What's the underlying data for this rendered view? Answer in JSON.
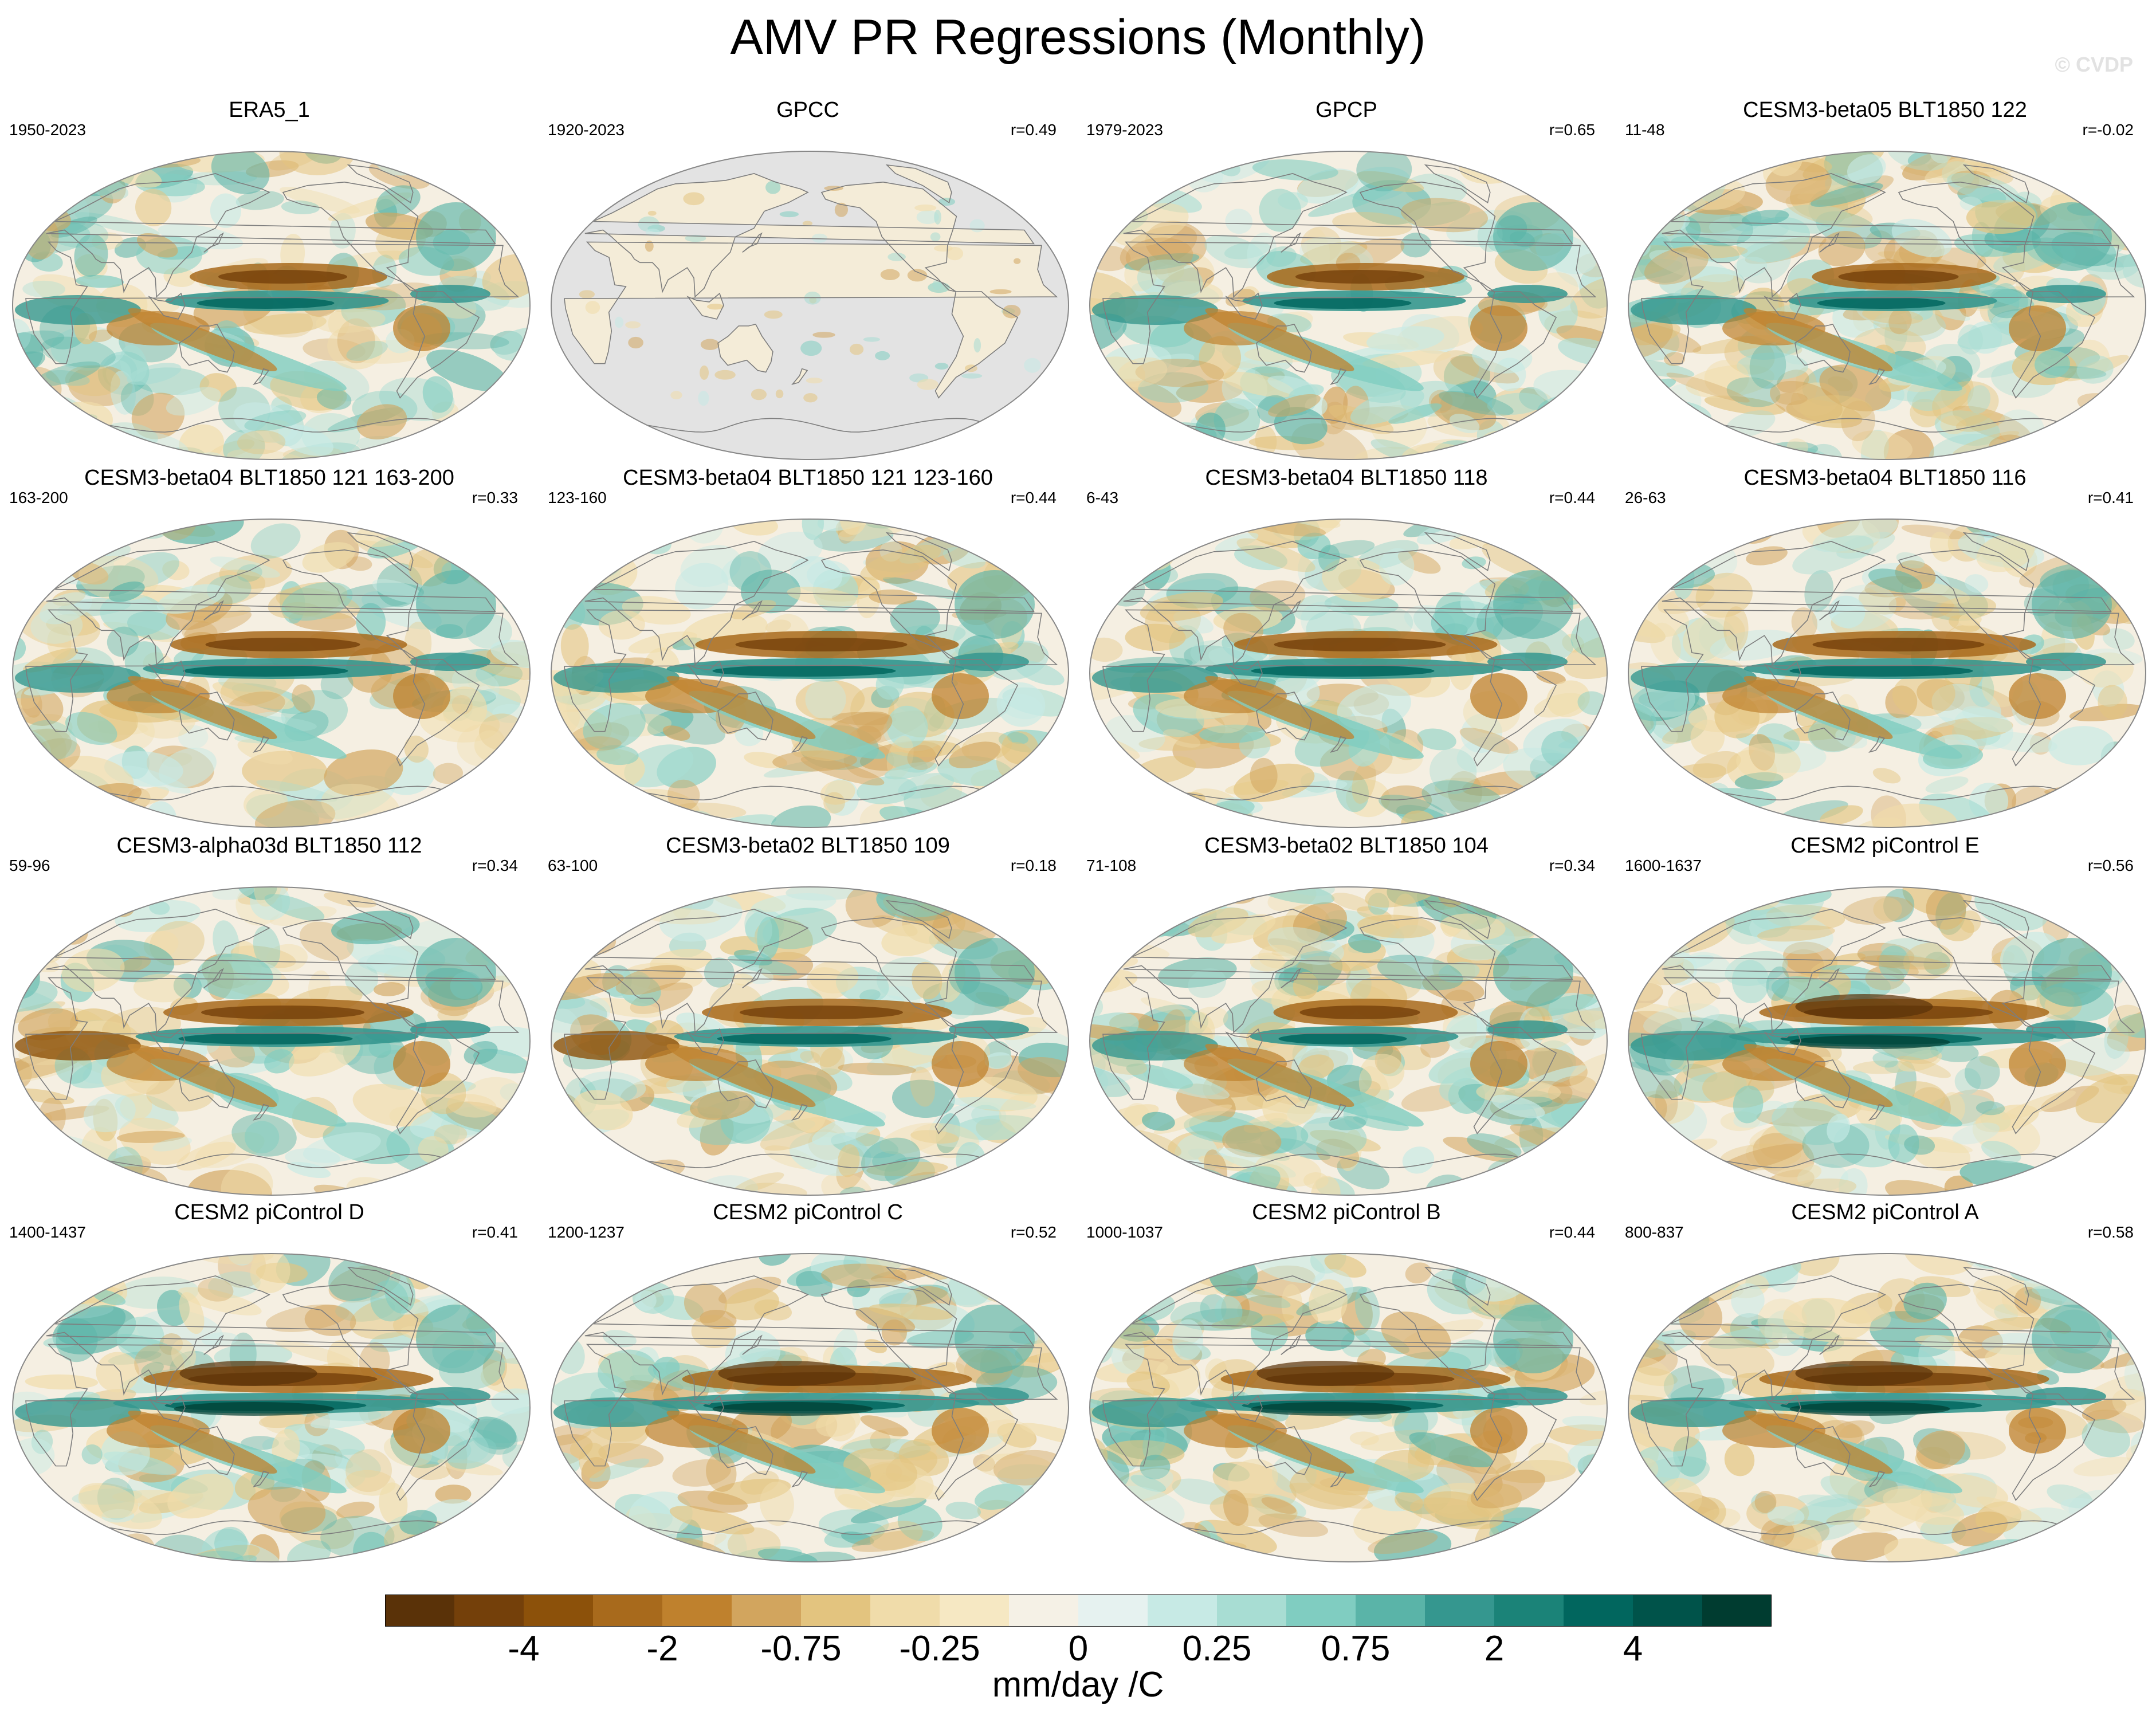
{
  "title": "AMV PR Regressions (Monthly)",
  "watermark": "© CVDP",
  "panels": [
    {
      "name": "ERA5_1",
      "period": "1950-2023",
      "corr": "",
      "pattern": "obs"
    },
    {
      "name": "GPCC",
      "period": "1920-2023",
      "corr": "r=0.49",
      "pattern": "land"
    },
    {
      "name": "GPCP",
      "period": "1979-2023",
      "corr": "r=0.65",
      "pattern": "obs"
    },
    {
      "name": "CESM3-beta05 BLT1850 122",
      "period": "11-48",
      "corr": "r=-0.02",
      "pattern": "noisy"
    },
    {
      "name": "CESM3-beta04 BLT1850 121 163-200",
      "period": "163-200",
      "corr": "r=0.33",
      "pattern": "split"
    },
    {
      "name": "CESM3-beta04 BLT1850 121 123-160",
      "period": "123-160",
      "corr": "r=0.44",
      "pattern": "enso"
    },
    {
      "name": "CESM3-beta04 BLT1850 118",
      "period": "6-43",
      "corr": "r=0.44",
      "pattern": "enso"
    },
    {
      "name": "CESM3-beta04 BLT1850 116",
      "period": "26-63",
      "corr": "r=0.41",
      "pattern": "enso"
    },
    {
      "name": "CESM3-alpha03d BLT1850 112",
      "period": "59-96",
      "corr": "r=0.34",
      "pattern": "west"
    },
    {
      "name": "CESM3-beta02 BLT1850 109",
      "period": "63-100",
      "corr": "r=0.18",
      "pattern": "west"
    },
    {
      "name": "CESM3-beta02 BLT1850 104",
      "period": "71-108",
      "corr": "r=0.34",
      "pattern": "noisy"
    },
    {
      "name": "CESM2 piControl E",
      "period": "1600-1637",
      "corr": "r=0.56",
      "pattern": "strong"
    },
    {
      "name": "CESM2 piControl D",
      "period": "1400-1437",
      "corr": "r=0.41",
      "pattern": "strong"
    },
    {
      "name": "CESM2 piControl C",
      "period": "1200-1237",
      "corr": "r=0.52",
      "pattern": "strong"
    },
    {
      "name": "CESM2 piControl B",
      "period": "1000-1037",
      "corr": "r=0.44",
      "pattern": "strong"
    },
    {
      "name": "CESM2 piControl A",
      "period": "800-837",
      "corr": "r=0.58",
      "pattern": "strong"
    }
  ],
  "colorbar": {
    "colors": [
      "#5a3208",
      "#74400a",
      "#8c510a",
      "#a86a1c",
      "#bf812d",
      "#d2a55e",
      "#e3c47f",
      "#f0dcaa",
      "#f6e8c3",
      "#f5f1e6",
      "#e6f2f0",
      "#c7eae5",
      "#a8ddd3",
      "#80cdc1",
      "#5ab4a8",
      "#35978f",
      "#1b8378",
      "#01665e",
      "#00534a",
      "#003c30"
    ],
    "tick_labels": [
      "-4",
      "-2",
      "-0.75",
      "-0.25",
      "0",
      "0.25",
      "0.75",
      "2",
      "4"
    ],
    "units": "mm/day /C"
  },
  "map_colors": {
    "ocean_missing": "#e3e3e3",
    "coast": "#7d7d7d",
    "outline": "#888888"
  }
}
